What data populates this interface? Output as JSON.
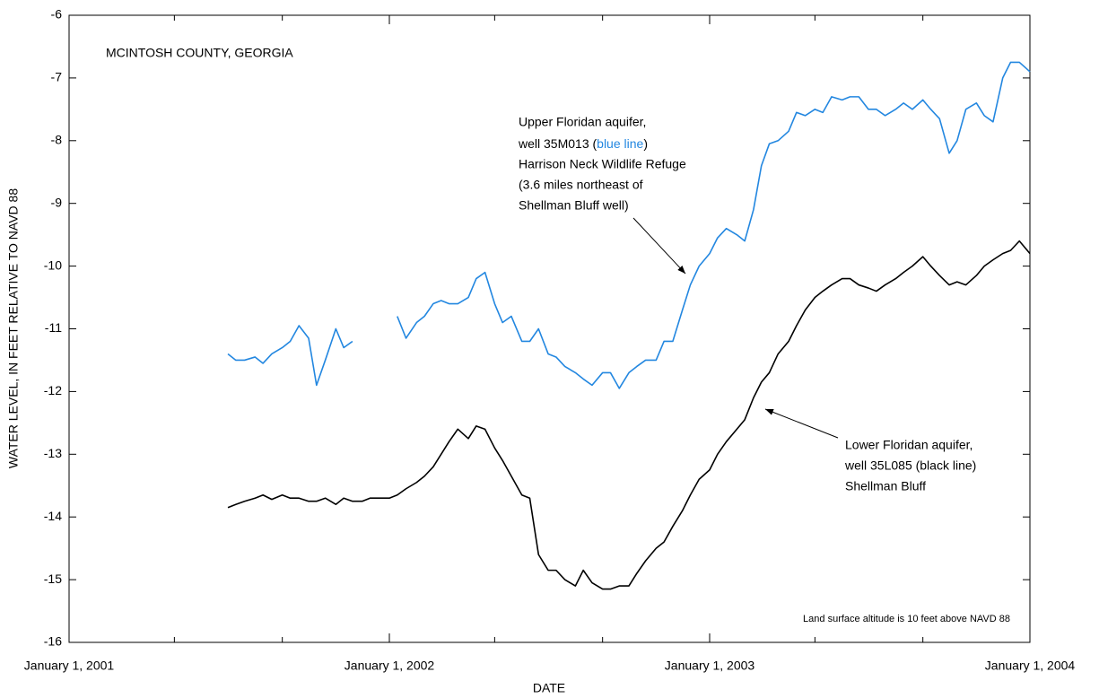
{
  "chart_data": {
    "type": "line",
    "title": "MCINTOSH COUNTY, GEORGIA",
    "x_label": "DATE",
    "y_label": "WATER LEVEL, IN FEET RELATIVE TO NAVD 88",
    "xlim": [
      "2001-01-01",
      "2004-01-01"
    ],
    "xticks": [
      {
        "value": "2001-01-01",
        "label": "January 1, 2001"
      },
      {
        "value": "2002-01-01",
        "label": "January 1, 2002"
      },
      {
        "value": "2003-01-01",
        "label": "January 1, 2003"
      },
      {
        "value": "2004-01-01",
        "label": "January 1, 2004"
      }
    ],
    "xminorticks": [
      "2001-05-01",
      "2001-09-01",
      "2002-05-01",
      "2002-09-01",
      "2003-05-01",
      "2003-09-01"
    ],
    "ylim": [
      -16,
      -6
    ],
    "yticks": [
      -16,
      -15,
      -14,
      -13,
      -12,
      -11,
      -10,
      -9,
      -8,
      -7,
      -6
    ],
    "grid": false,
    "x": [
      "2001-07-01",
      "2001-07-10",
      "2001-07-20",
      "2001-08-01",
      "2001-08-10",
      "2001-08-20",
      "2001-09-01",
      "2001-09-10",
      "2001-09-20",
      "2001-10-01",
      "2001-10-10",
      "2001-10-20",
      "2001-11-01",
      "2001-11-10",
      "2001-11-20",
      "2001-12-01",
      "2001-12-10",
      "2001-12-20",
      "2002-01-01",
      "2002-01-10",
      "2002-01-20",
      "2002-02-01",
      "2002-02-10",
      "2002-02-20",
      "2002-03-01",
      "2002-03-10",
      "2002-03-20",
      "2002-04-01",
      "2002-04-10",
      "2002-04-20",
      "2002-05-01",
      "2002-05-10",
      "2002-05-20",
      "2002-06-01",
      "2002-06-10",
      "2002-06-20",
      "2002-07-01",
      "2002-07-10",
      "2002-07-20",
      "2002-08-01",
      "2002-08-10",
      "2002-08-20",
      "2002-09-01",
      "2002-09-10",
      "2002-09-20",
      "2002-10-01",
      "2002-10-10",
      "2002-10-20",
      "2002-11-01",
      "2002-11-10",
      "2002-11-20",
      "2002-12-01",
      "2002-12-10",
      "2002-12-20",
      "2003-01-01",
      "2003-01-10",
      "2003-01-20",
      "2003-02-01",
      "2003-02-10",
      "2003-02-20",
      "2003-03-01",
      "2003-03-10",
      "2003-03-20",
      "2003-04-01",
      "2003-04-10",
      "2003-04-20",
      "2003-05-01",
      "2003-05-10",
      "2003-05-20",
      "2003-06-01",
      "2003-06-10",
      "2003-06-20",
      "2003-07-01",
      "2003-07-10",
      "2003-07-20",
      "2003-08-01",
      "2003-08-10",
      "2003-08-20",
      "2003-09-01",
      "2003-09-10",
      "2003-09-20",
      "2003-10-01",
      "2003-10-10",
      "2003-10-20",
      "2003-11-01",
      "2003-11-10",
      "2003-11-20",
      "2003-12-01",
      "2003-12-10",
      "2003-12-20",
      "2004-01-01"
    ],
    "series": [
      {
        "name": "Upper Floridan aquifer, well 35M013",
        "color": "#2387e0",
        "values": [
          -11.4,
          -11.5,
          -11.5,
          -11.45,
          -11.55,
          -11.4,
          -11.3,
          -11.2,
          -10.95,
          -11.15,
          -11.9,
          -11.5,
          -11.0,
          -11.3,
          -11.2,
          null,
          null,
          null,
          null,
          -10.8,
          -11.15,
          -10.9,
          -10.8,
          -10.6,
          -10.55,
          -10.6,
          -10.6,
          -10.5,
          -10.2,
          -10.1,
          -10.6,
          -10.9,
          -10.8,
          -11.2,
          -11.2,
          -11.0,
          -11.4,
          -11.45,
          -11.6,
          -11.7,
          -11.8,
          -11.9,
          -11.7,
          -11.7,
          -11.95,
          -11.7,
          -11.6,
          -11.5,
          -11.5,
          -11.2,
          -11.2,
          -10.7,
          -10.3,
          -10.0,
          -9.8,
          -9.55,
          -9.4,
          -9.5,
          -9.6,
          -9.1,
          -8.4,
          -8.05,
          -8.0,
          -7.85,
          -7.55,
          -7.6,
          -7.5,
          -7.55,
          -7.3,
          -7.35,
          -7.3,
          -7.3,
          -7.5,
          -7.5,
          -7.6,
          -7.5,
          -7.4,
          -7.5,
          -7.35,
          -7.5,
          -7.65,
          -8.2,
          -8.0,
          -7.5,
          -7.4,
          -7.6,
          -7.7,
          -7.0,
          -6.75,
          -6.75,
          -6.9
        ]
      },
      {
        "name": "Lower Floridan aquifer, well 35L085",
        "color": "#000000",
        "values": [
          -13.85,
          -13.8,
          -13.75,
          -13.7,
          -13.65,
          -13.72,
          -13.65,
          -13.7,
          -13.7,
          -13.75,
          -13.75,
          -13.7,
          -13.8,
          -13.7,
          -13.75,
          -13.75,
          -13.7,
          -13.7,
          -13.7,
          -13.65,
          -13.55,
          -13.45,
          -13.35,
          -13.2,
          -13.0,
          -12.8,
          -12.6,
          -12.75,
          -12.55,
          -12.6,
          -12.9,
          -13.1,
          -13.35,
          -13.65,
          -13.7,
          -14.6,
          -14.85,
          -14.85,
          -15.0,
          -15.1,
          -14.85,
          -15.05,
          -15.15,
          -15.15,
          -15.1,
          -15.1,
          -14.9,
          -14.7,
          -14.5,
          -14.4,
          -14.15,
          -13.9,
          -13.65,
          -13.4,
          -13.25,
          -13.0,
          -12.8,
          -12.6,
          -12.45,
          -12.1,
          -11.85,
          -11.7,
          -11.4,
          -11.2,
          -10.95,
          -10.7,
          -10.5,
          -10.4,
          -10.3,
          -10.2,
          -10.2,
          -10.3,
          -10.35,
          -10.4,
          -10.3,
          -10.2,
          -10.1,
          -10.0,
          -9.85,
          -10.0,
          -10.15,
          -10.3,
          -10.25,
          -10.3,
          -10.15,
          -10.0,
          -9.9,
          -9.8,
          -9.75,
          -9.6,
          -9.8
        ]
      }
    ],
    "annotations": {
      "upper": {
        "line1": "Upper Floridan aquifer,",
        "line2a": "well 35M013 (",
        "line2b": "blue line",
        "line2c": ")",
        "line3": "Harrison Neck Wildlife Refuge",
        "line4": "(3.6 miles northeast of",
        "line5": "Shellman Bluff well)"
      },
      "lower": {
        "line1": "Lower Floridan aquifer,",
        "line2": "well 35L085 (black line)",
        "line3": "Shellman Bluff"
      },
      "note": "Land surface altitude is 10 feet above NAVD 88"
    }
  }
}
